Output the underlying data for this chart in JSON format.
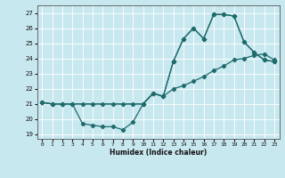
{
  "xlabel": "Humidex (Indice chaleur)",
  "xlim": [
    -0.5,
    23.5
  ],
  "ylim": [
    18.7,
    27.5
  ],
  "yticks": [
    19,
    20,
    21,
    22,
    23,
    24,
    25,
    26,
    27
  ],
  "xticks": [
    0,
    1,
    2,
    3,
    4,
    5,
    6,
    7,
    8,
    9,
    10,
    11,
    12,
    13,
    14,
    15,
    16,
    17,
    18,
    19,
    20,
    21,
    22,
    23
  ],
  "background_color": "#c8e8f0",
  "grid_color": "#ffffff",
  "line_color": "#1e6b6b",
  "line1_x": [
    0,
    1,
    2,
    3,
    4,
    5,
    6,
    7,
    8,
    9,
    10,
    11,
    12,
    13,
    14,
    15,
    16,
    17,
    18,
    19,
    20,
    21,
    22,
    23
  ],
  "line1_y": [
    21.1,
    21.0,
    21.0,
    21.0,
    19.7,
    19.6,
    19.5,
    19.5,
    19.3,
    19.8,
    21.0,
    21.7,
    21.5,
    23.8,
    25.3,
    26.0,
    25.3,
    26.9,
    26.9,
    26.8,
    25.1,
    24.4,
    23.9,
    23.8
  ],
  "line2_x": [
    0,
    1,
    2,
    3,
    10,
    11,
    12,
    13,
    14,
    15,
    16,
    17,
    18,
    19,
    20,
    21,
    22,
    23
  ],
  "line2_y": [
    21.1,
    21.0,
    21.0,
    21.0,
    21.0,
    21.7,
    21.5,
    23.8,
    25.3,
    26.0,
    25.3,
    26.9,
    26.9,
    26.8,
    25.1,
    24.4,
    23.9,
    23.8
  ],
  "line3_x": [
    0,
    1,
    2,
    3,
    4,
    5,
    6,
    7,
    8,
    9,
    10,
    11,
    12,
    13,
    14,
    15,
    16,
    17,
    18,
    19,
    20,
    21,
    22,
    23
  ],
  "line3_y": [
    21.1,
    21.0,
    21.0,
    21.0,
    21.0,
    21.0,
    21.0,
    21.0,
    21.0,
    21.0,
    21.0,
    21.7,
    21.5,
    22.0,
    22.2,
    22.5,
    22.8,
    23.2,
    23.5,
    23.9,
    24.0,
    24.2,
    24.3,
    23.9
  ]
}
